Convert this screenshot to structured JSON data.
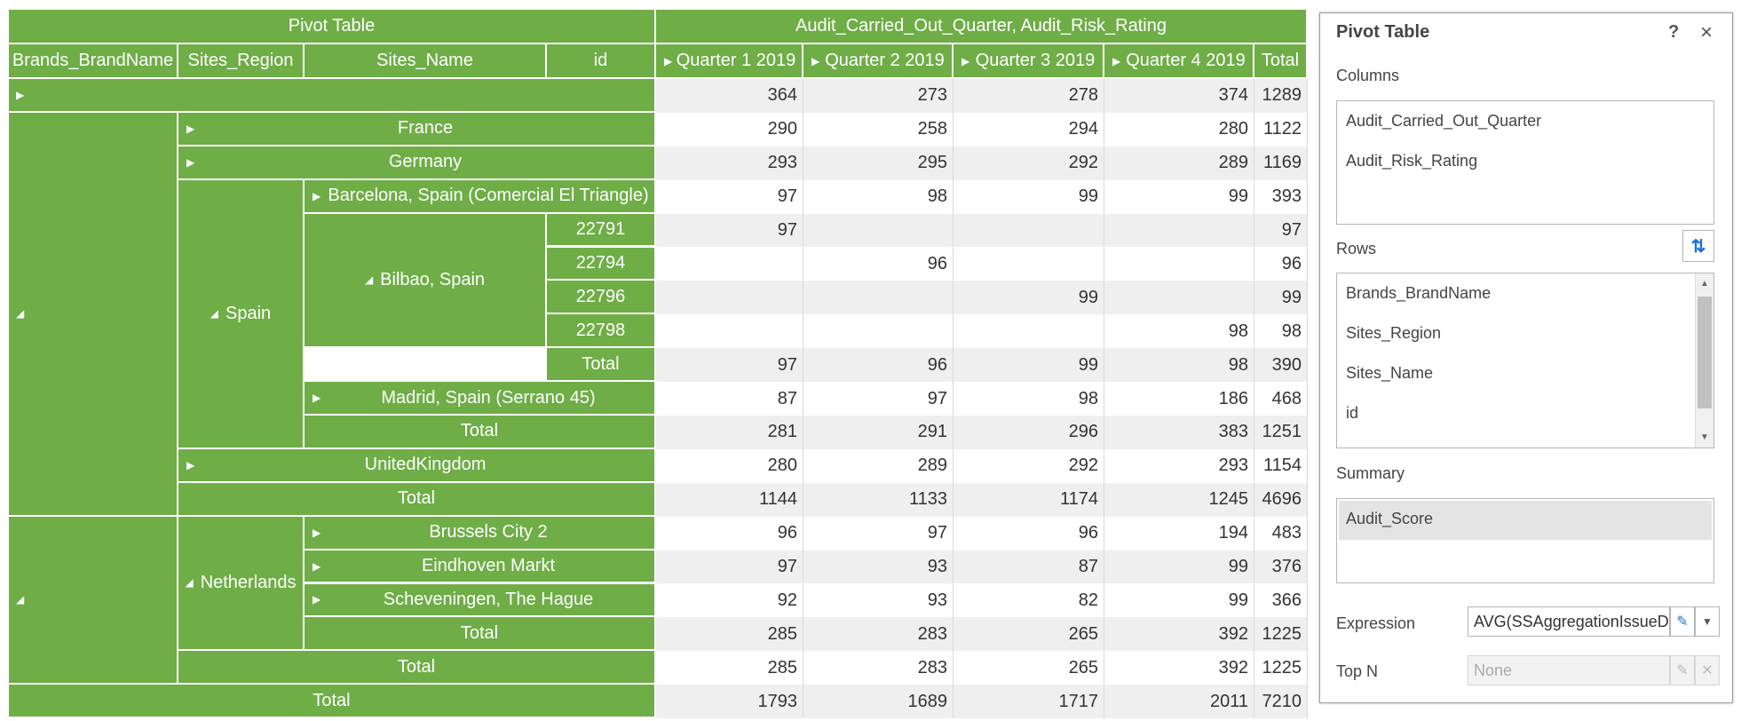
{
  "pivot": {
    "title": "Pivot Table",
    "column_fields_caption": "Audit_Carried_Out_Quarter, Audit_Risk_Rating",
    "row_headers": [
      "Brands_BrandName",
      "Sites_Region",
      "Sites_Name",
      "id"
    ],
    "column_headers": [
      "Quarter 1 2019",
      "Quarter 2 2019",
      "Quarter 3 2019",
      "Quarter 4 2019",
      "Total"
    ],
    "row_labels": {
      "france": "France",
      "germany": "Germany",
      "spain": "Spain",
      "barcelona": "Barcelona, Spain (Comercial El Triangle)",
      "bilbao": "Bilbao, Spain",
      "id1": "22791",
      "id2": "22794",
      "id3": "22796",
      "id4": "22798",
      "bilbao_total": "Total",
      "madrid": "Madrid, Spain (Serrano 45)",
      "spain_total": "Total",
      "uk": "UnitedKingdom",
      "brand1_total": "Total",
      "netherlands": "Netherlands",
      "brussels": "Brussels City 2",
      "eindhoven": "Eindhoven Markt",
      "scheveningen": "Scheveningen, The Hague",
      "netherlands_total": "Total",
      "brand2_total": "Total",
      "grand_total": "Total"
    },
    "rows": [
      [
        "364",
        "273",
        "278",
        "374",
        "1289"
      ],
      [
        "290",
        "258",
        "294",
        "280",
        "1122"
      ],
      [
        "293",
        "295",
        "292",
        "289",
        "1169"
      ],
      [
        "97",
        "98",
        "99",
        "99",
        "393"
      ],
      [
        "97",
        "",
        "",
        "",
        "97"
      ],
      [
        "",
        "96",
        "",
        "",
        "96"
      ],
      [
        "",
        "",
        "99",
        "",
        "99"
      ],
      [
        "",
        "",
        "",
        "98",
        "98"
      ],
      [
        "97",
        "96",
        "99",
        "98",
        "390"
      ],
      [
        "87",
        "97",
        "98",
        "186",
        "468"
      ],
      [
        "281",
        "291",
        "296",
        "383",
        "1251"
      ],
      [
        "280",
        "289",
        "292",
        "293",
        "1154"
      ],
      [
        "1144",
        "1133",
        "1174",
        "1245",
        "4696"
      ],
      [
        "96",
        "97",
        "96",
        "194",
        "483"
      ],
      [
        "97",
        "93",
        "87",
        "99",
        "376"
      ],
      [
        "92",
        "93",
        "82",
        "99",
        "366"
      ],
      [
        "285",
        "283",
        "265",
        "392",
        "1225"
      ],
      [
        "285",
        "283",
        "265",
        "392",
        "1225"
      ],
      [
        "1793",
        "1689",
        "1717",
        "2011",
        "7210"
      ]
    ]
  },
  "panel": {
    "title": "Pivot Table",
    "help": "?",
    "close": "×",
    "columns_label": "Columns",
    "columns": [
      "Audit_Carried_Out_Quarter",
      "Audit_Risk_Rating"
    ],
    "rows_label": "Rows",
    "rows": [
      "Brands_BrandName",
      "Sites_Region",
      "Sites_Name",
      "id"
    ],
    "summary_label": "Summary",
    "summary": [
      "Audit_Score"
    ],
    "expression_label": "Expression",
    "expression_value": "AVG(SSAggregationIssueD",
    "topn_label": "Top N",
    "topn_placeholder": "None"
  }
}
